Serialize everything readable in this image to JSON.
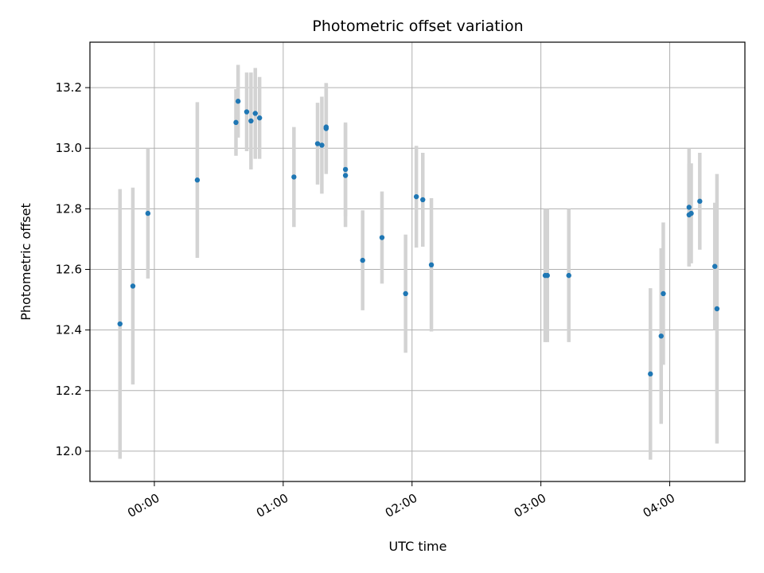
{
  "chart_data": {
    "type": "scatter",
    "title": "Photometric offset variation",
    "xlabel": "UTC time",
    "ylabel": "Photometric offset",
    "x_unit": "time of day (UTC, HH:MM)",
    "xlim": [
      "23:30",
      "04:35"
    ],
    "ylim": [
      11.9,
      13.35
    ],
    "x_ticks": [
      "00:00",
      "01:00",
      "02:00",
      "03:00",
      "04:00"
    ],
    "y_ticks": [
      "12.0",
      "12.2",
      "12.4",
      "12.6",
      "12.8",
      "13.0",
      "13.2"
    ],
    "grid": true,
    "colors": {
      "marker": "#1f77b4",
      "errorbar": "#d3d3d3",
      "grid": "#b0b0b0"
    },
    "points": [
      {
        "x": "23:44",
        "y": 12.42,
        "err": 0.445
      },
      {
        "x": "23:50",
        "y": 12.545,
        "err": 0.325
      },
      {
        "x": "23:57",
        "y": 12.785,
        "err": 0.215
      },
      {
        "x": "00:20",
        "y": 12.895,
        "err": 0.257
      },
      {
        "x": "00:38",
        "y": 13.085,
        "err": 0.11
      },
      {
        "x": "00:39",
        "y": 13.155,
        "err": 0.12
      },
      {
        "x": "00:43",
        "y": 13.12,
        "err": 0.13
      },
      {
        "x": "00:45",
        "y": 13.09,
        "err": 0.16
      },
      {
        "x": "00:47",
        "y": 13.115,
        "err": 0.15
      },
      {
        "x": "00:49",
        "y": 13.1,
        "err": 0.135
      },
      {
        "x": "01:05",
        "y": 12.905,
        "err": 0.165
      },
      {
        "x": "01:16",
        "y": 13.015,
        "err": 0.135
      },
      {
        "x": "01:18",
        "y": 13.01,
        "err": 0.16
      },
      {
        "x": "01:20",
        "y": 13.065,
        "err": 0.15
      },
      {
        "x": "01:20",
        "y": 13.07,
        "err": 0.145
      },
      {
        "x": "01:29",
        "y": 12.93,
        "err": 0.155
      },
      {
        "x": "01:29",
        "y": 12.91,
        "err": 0.17
      },
      {
        "x": "01:37",
        "y": 12.63,
        "err": 0.165
      },
      {
        "x": "01:46",
        "y": 12.705,
        "err": 0.152
      },
      {
        "x": "01:57",
        "y": 12.52,
        "err": 0.195
      },
      {
        "x": "02:02",
        "y": 12.84,
        "err": 0.168
      },
      {
        "x": "02:05",
        "y": 12.83,
        "err": 0.155
      },
      {
        "x": "02:09",
        "y": 12.615,
        "err": 0.22
      },
      {
        "x": "03:02",
        "y": 12.58,
        "err": 0.22
      },
      {
        "x": "03:03",
        "y": 12.58,
        "err": 0.22
      },
      {
        "x": "03:13",
        "y": 12.58,
        "err": 0.22
      },
      {
        "x": "03:51",
        "y": 12.255,
        "err": 0.283
      },
      {
        "x": "03:56",
        "y": 12.38,
        "err": 0.29
      },
      {
        "x": "03:57",
        "y": 12.52,
        "err": 0.235
      },
      {
        "x": "04:09",
        "y": 12.805,
        "err": 0.195
      },
      {
        "x": "04:10",
        "y": 12.785,
        "err": 0.165
      },
      {
        "x": "04:09",
        "y": 12.78,
        "err": 0.17
      },
      {
        "x": "04:14",
        "y": 12.825,
        "err": 0.16
      },
      {
        "x": "04:21",
        "y": 12.61,
        "err": 0.21
      },
      {
        "x": "04:22",
        "y": 12.47,
        "err": 0.445
      }
    ]
  }
}
